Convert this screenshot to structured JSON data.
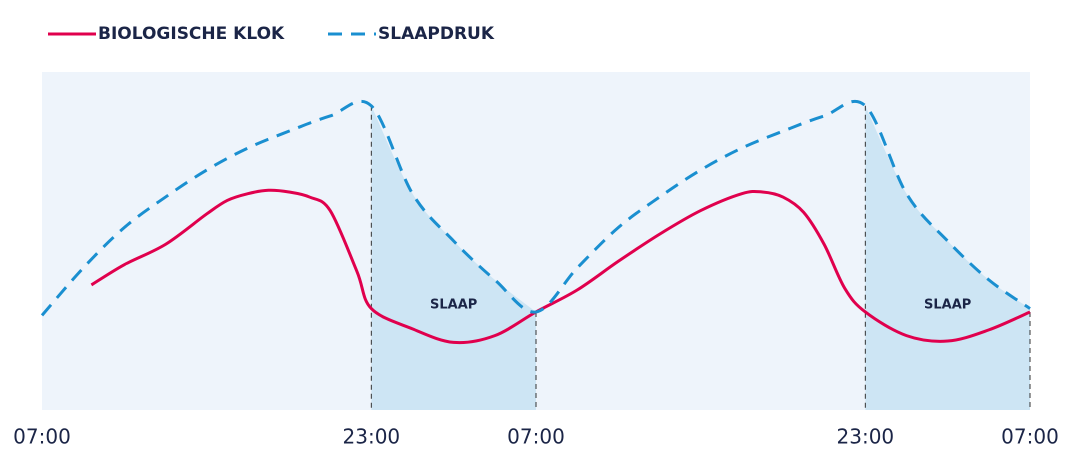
{
  "chart_data": {
    "type": "line",
    "series": [
      {
        "name": "BIOLOGISCHE KLOK",
        "color": "#e0004d",
        "dashed": false,
        "x": [
          2.4,
          4,
          6,
          8,
          9,
          10,
          11,
          12,
          13,
          14,
          15.3,
          16,
          18,
          20,
          22,
          24,
          26,
          28,
          30,
          32,
          34,
          35,
          36,
          37,
          38,
          39,
          40,
          42,
          44,
          46,
          48
        ],
        "values": [
          37,
          43,
          49,
          58,
          62,
          64,
          65,
          64.5,
          63,
          59,
          41,
          30,
          24,
          20,
          22,
          29,
          35.5,
          44,
          52,
          59,
          64,
          64.5,
          63,
          58.5,
          49,
          36,
          29,
          22,
          20.4,
          23.7,
          29
        ]
      },
      {
        "name": "SLAAPDRUK",
        "color": "#1a8fd0",
        "dashed": true,
        "x": [
          0,
          2,
          4,
          6,
          8,
          10,
          12,
          14,
          16,
          18,
          20,
          22,
          24,
          26,
          28,
          30,
          32,
          34,
          36,
          38,
          40,
          42,
          44,
          46,
          48
        ],
        "values": [
          28,
          42,
          54,
          63,
          71,
          77.5,
          82.5,
          87,
          90,
          64,
          50,
          38.5,
          29,
          42,
          54,
          63,
          71,
          77.5,
          82.5,
          87,
          90,
          64,
          50,
          38.5,
          30
        ]
      }
    ],
    "shaded": [
      {
        "from": 16,
        "to": 24,
        "label": "SLAAP"
      },
      {
        "from": 40,
        "to": 48,
        "label": "SLAAP"
      }
    ],
    "xlim": [
      0,
      48
    ],
    "ylim": [
      0,
      100
    ],
    "xticks": [
      {
        "value": 0,
        "label": "07:00"
      },
      {
        "value": 16,
        "label": "23:00"
      },
      {
        "value": 24,
        "label": "07:00"
      },
      {
        "value": 40,
        "label": "23:00"
      },
      {
        "value": 48,
        "label": "07:00"
      }
    ]
  }
}
